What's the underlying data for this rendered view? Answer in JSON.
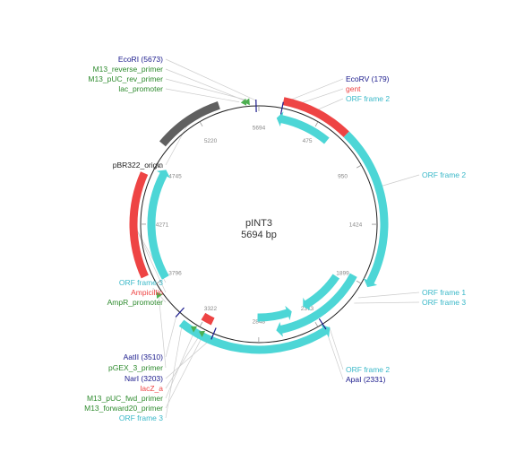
{
  "map": {
    "name": "pINT3",
    "length_label": "5694 bp",
    "length": 5694
  },
  "ticks": [
    {
      "pos": 0,
      "label": "5694"
    },
    {
      "pos": 475,
      "label": "475"
    },
    {
      "pos": 950,
      "label": "950"
    },
    {
      "pos": 1424,
      "label": "1424"
    },
    {
      "pos": 1899,
      "label": "1899"
    },
    {
      "pos": 2373,
      "label": "2373"
    },
    {
      "pos": 2848,
      "label": "2848"
    },
    {
      "pos": 3322,
      "label": "3322"
    },
    {
      "pos": 3796,
      "label": "3796"
    },
    {
      "pos": 4271,
      "label": "4271"
    },
    {
      "pos": 4745,
      "label": "4745"
    },
    {
      "pos": 5220,
      "label": "5220"
    }
  ],
  "colors": {
    "enzyme": "#1a1a8c",
    "enzyme_text": "#1a1a8c",
    "primer": "#4caf50",
    "primer_text": "#2e8b2e",
    "promoter_text": "#2e8b2e",
    "marker": "#ee4444",
    "orf": "#4dd6d6",
    "orf_text": "#3ab8c8",
    "origin": "#606060",
    "backbone": "#222222",
    "tick_text": "#888888",
    "leader": "#cccccc"
  },
  "features": [
    {
      "name": "pBR322_origin",
      "type": "origin",
      "start": 4900,
      "end": 5400,
      "lane": 0
    },
    {
      "name": "gent",
      "type": "marker",
      "start": 179,
      "end": 700,
      "lane": 0
    },
    {
      "name": "Ampicillin",
      "type": "marker",
      "start": 3880,
      "end": 4650,
      "lane": 0
    },
    {
      "name": "lacZ_a",
      "type": "marker",
      "start": 3248,
      "end": 3340,
      "lane": 1
    },
    {
      "name": "ORF frame 2",
      "type": "orf",
      "start": 150,
      "end": 620,
      "lane": 1,
      "dir": -1
    },
    {
      "name": "ORF frame 2",
      "type": "orf",
      "start": 700,
      "end": 1899,
      "lane": 0,
      "dir": 1
    },
    {
      "name": "ORF frame 1",
      "type": "orf",
      "start": 1870,
      "end": 2700,
      "lane": 1,
      "dir": 1
    },
    {
      "name": "ORF frame 3",
      "type": "orf",
      "start": 1960,
      "end": 2400,
      "lane": 2,
      "dir": 1
    },
    {
      "name": "ORF frame 2",
      "type": "orf",
      "start": 2300,
      "end": 3450,
      "lane": 0,
      "dir": -1
    },
    {
      "name": "ORF frame 3",
      "type": "orf",
      "start": 2520,
      "end": 2860,
      "lane": 2,
      "dir": -1
    },
    {
      "name": "ORF frame 3",
      "type": "orf",
      "start": 3800,
      "end": 4750,
      "lane": 1,
      "dir": 1
    }
  ],
  "primers": [
    {
      "name": "M13_reverse_primer",
      "pos": 5600,
      "dir": -1
    },
    {
      "name": "M13_pUC_rev_primer",
      "pos": 5625,
      "dir": -1
    },
    {
      "name": "pGEX_3_primer",
      "pos": 3700,
      "dir": 1
    },
    {
      "name": "M13_pUC_fwd_primer",
      "pos": 3340,
      "dir": 1
    },
    {
      "name": "M13_forward20_primer",
      "pos": 3270,
      "dir": 1
    }
  ],
  "sites": [
    {
      "name": "EcoRI (5673)",
      "pos": 5673
    },
    {
      "name": "EcoRV (179)",
      "pos": 179
    },
    {
      "name": "AatII (3510)",
      "pos": 3510
    },
    {
      "name": "NarI (3203)",
      "pos": 3203
    },
    {
      "name": "ApaI (2331)",
      "pos": 2331
    }
  ],
  "labels_left": [
    {
      "text": "EcoRI (5673)",
      "kind": "enzyme",
      "anchor_pos": 5673
    },
    {
      "text": "M13_reverse_primer",
      "kind": "primer",
      "anchor_pos": 5600
    },
    {
      "text": "M13_pUC_rev_primer",
      "kind": "primer",
      "anchor_pos": 5625
    },
    {
      "text": "lac_promoter",
      "kind": "promoter",
      "anchor_pos": 5550
    },
    {
      "text": "pBR322_origin",
      "kind": "plain",
      "anchor_pos": 5150
    },
    {
      "text": "ORF frame 3",
      "kind": "orf",
      "anchor_pos": 4250
    },
    {
      "text": "Ampicillin",
      "kind": "marker",
      "anchor_pos": 4250
    },
    {
      "text": "AmpR_promoter",
      "kind": "promoter",
      "anchor_pos": 3780
    },
    {
      "text": "AatII (3510)",
      "kind": "enzyme",
      "anchor_pos": 3510
    },
    {
      "text": "pGEX_3_primer",
      "kind": "primer",
      "anchor_pos": 3700
    },
    {
      "text": "NarI (3203)",
      "kind": "enzyme",
      "anchor_pos": 3203
    },
    {
      "text": "lacZ_a",
      "kind": "marker",
      "anchor_pos": 3290
    },
    {
      "text": "M13_pUC_fwd_primer",
      "kind": "primer",
      "anchor_pos": 3340
    },
    {
      "text": "M13_forward20_primer",
      "kind": "primer",
      "anchor_pos": 3270
    },
    {
      "text": "ORF frame 3",
      "kind": "orf",
      "anchor_pos": 3450
    }
  ],
  "labels_right": [
    {
      "text": "EcoRV (179)",
      "kind": "enzyme",
      "anchor_pos": 179
    },
    {
      "text": "gent",
      "kind": "marker",
      "anchor_pos": 260
    },
    {
      "text": "ORF frame 2",
      "kind": "orf",
      "anchor_pos": 400
    },
    {
      "text": "ORF frame 2",
      "kind": "orf",
      "anchor_pos": 1150
    },
    {
      "text": "ORF frame 1",
      "kind": "orf",
      "anchor_pos": 2000
    },
    {
      "text": "ORF frame 3",
      "kind": "orf",
      "anchor_pos": 2050
    },
    {
      "text": "ORF frame 2",
      "kind": "orf",
      "anchor_pos": 2300
    },
    {
      "text": "ApaI (2331)",
      "kind": "enzyme",
      "anchor_pos": 2331
    }
  ]
}
